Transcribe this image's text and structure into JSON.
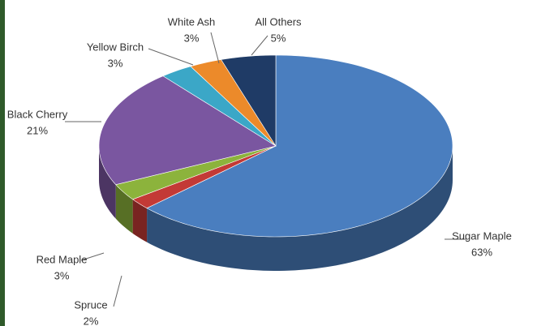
{
  "chart_data": {
    "type": "pie3d",
    "categories": [
      "Sugar Maple",
      "Spruce",
      "Red Maple",
      "Black Cherry",
      "Yellow Birch",
      "White Ash",
      "All Others"
    ],
    "values": [
      63,
      2,
      3,
      21,
      3,
      3,
      5
    ],
    "value_labels": [
      "63%",
      "2%",
      "3%",
      "21%",
      "3%",
      "3%",
      "5%"
    ],
    "colors": [
      "#4a7ebf",
      "#c33a36",
      "#8cb33c",
      "#7a56a0",
      "#3ba7c7",
      "#ec8a2a",
      "#1f3b66"
    ]
  }
}
